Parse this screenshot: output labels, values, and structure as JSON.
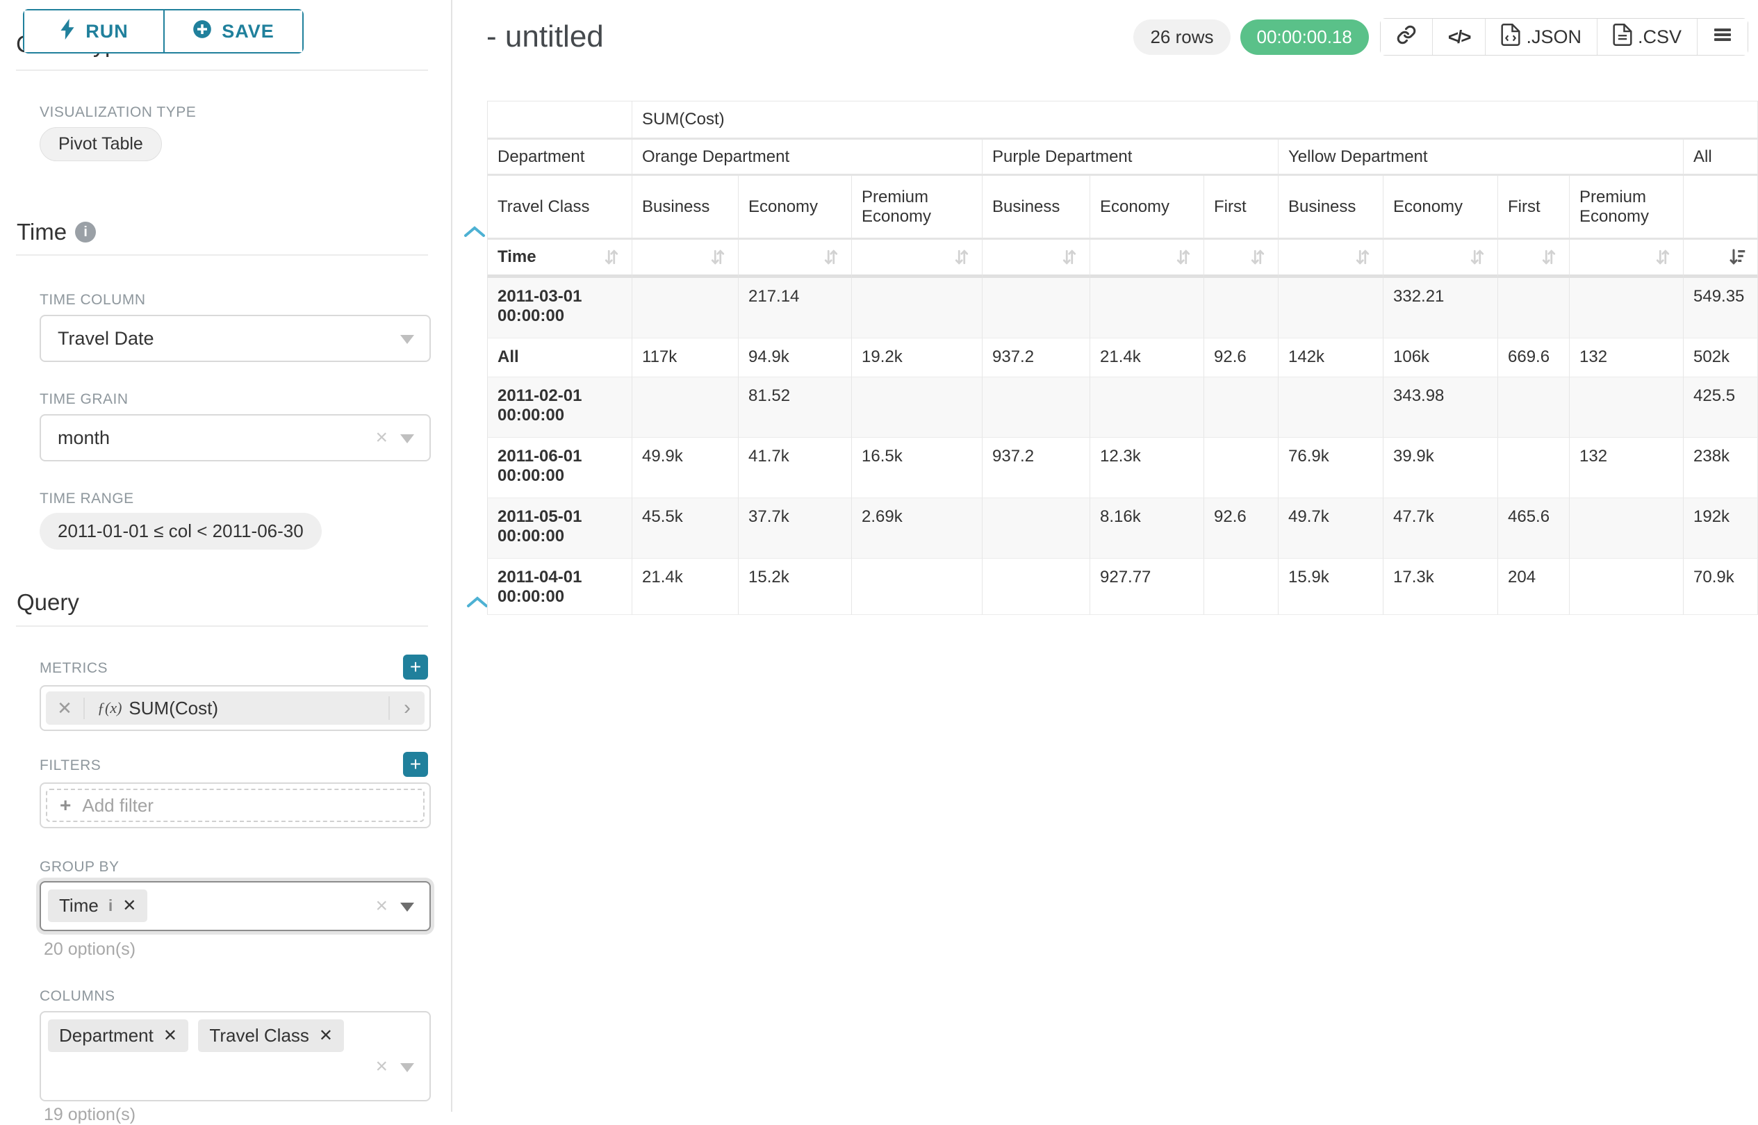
{
  "colors": {
    "accent": "#20809c",
    "success_green": "#5ac189",
    "chevron_blue": "#4db1d3"
  },
  "sidebar": {
    "run_label": "RUN",
    "save_label": "SAVE",
    "chart_type_header": "Chart Type",
    "viz_type_label": "VISUALIZATION TYPE",
    "viz_type_value": "Pivot Table",
    "time_section": "Time",
    "time_column_label": "TIME COLUMN",
    "time_column_value": "Travel Date",
    "time_grain_label": "TIME GRAIN",
    "time_grain_value": "month",
    "time_range_label": "TIME RANGE",
    "time_range_value": "2011-01-01 ≤ col < 2011-06-30",
    "query_section": "Query",
    "metrics_label": "METRICS",
    "metric_fx": "ƒ(x)",
    "metric_value": "SUM(Cost)",
    "filters_label": "FILTERS",
    "add_filter_label": "Add filter",
    "group_by_label": "GROUP BY",
    "group_by_pills": [
      "Time"
    ],
    "group_by_hint": "20 option(s)",
    "columns_label": "COLUMNS",
    "columns_pills": [
      "Department",
      "Travel Class"
    ],
    "columns_hint": "19 option(s)"
  },
  "header": {
    "title": "- untitled",
    "rows_badge": "26 rows",
    "timer_badge": "00:00:00.18",
    "json_label": ".JSON",
    "csv_label": ".CSV",
    "icons": [
      "link-icon",
      "code-icon",
      "json-file-icon",
      "csv-file-icon",
      "menu-icon"
    ]
  },
  "chart_data": {
    "type": "table",
    "title": "SUM(Cost)",
    "corner_labels": {
      "department": "Department",
      "travel_class": "Travel Class",
      "time": "Time"
    },
    "column_groups": [
      {
        "label": "Orange Department",
        "columns": [
          "Business",
          "Economy",
          "Premium Economy"
        ]
      },
      {
        "label": "Purple Department",
        "columns": [
          "Business",
          "Economy",
          "First"
        ]
      },
      {
        "label": "Yellow Department",
        "columns": [
          "Business",
          "Economy",
          "First",
          "Premium Economy"
        ]
      },
      {
        "label": "All",
        "columns": [
          ""
        ]
      }
    ],
    "rows": [
      {
        "label": "2011-03-01 00:00:00",
        "values": [
          "",
          "217.14",
          "",
          "",
          "",
          "",
          "",
          "332.21",
          "",
          "",
          "549.35"
        ]
      },
      {
        "label": "All",
        "values": [
          "117k",
          "94.9k",
          "19.2k",
          "937.2",
          "21.4k",
          "92.6",
          "142k",
          "106k",
          "669.6",
          "132",
          "502k"
        ]
      },
      {
        "label": "2011-02-01 00:00:00",
        "values": [
          "",
          "81.52",
          "",
          "",
          "",
          "",
          "",
          "343.98",
          "",
          "",
          "425.5"
        ]
      },
      {
        "label": "2011-06-01 00:00:00",
        "values": [
          "49.9k",
          "41.7k",
          "16.5k",
          "937.2",
          "12.3k",
          "",
          "76.9k",
          "39.9k",
          "",
          "132",
          "238k"
        ]
      },
      {
        "label": "2011-05-01 00:00:00",
        "values": [
          "45.5k",
          "37.7k",
          "2.69k",
          "",
          "8.16k",
          "92.6",
          "49.7k",
          "47.7k",
          "465.6",
          "",
          "192k"
        ]
      },
      {
        "label": "2011-04-01 00:00:00",
        "values": [
          "21.4k",
          "15.2k",
          "",
          "",
          "927.77",
          "",
          "15.9k",
          "17.3k",
          "204",
          "",
          "70.9k"
        ]
      }
    ],
    "sorted_column": "All",
    "sort_direction": "descending"
  }
}
